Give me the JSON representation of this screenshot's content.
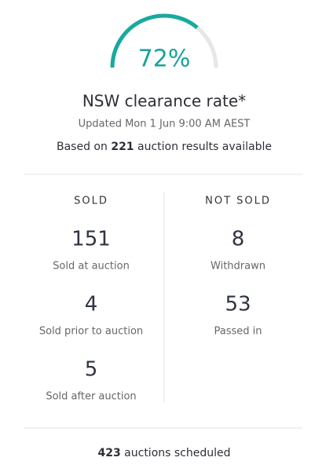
{
  "gauge": {
    "value": 72,
    "label": "72%",
    "max": 100
  },
  "title": "NSW clearance rate*",
  "updated": "Updated Mon 1 Jun 9:00 AM AEST",
  "based_on": {
    "prefix": "Based on",
    "count": 221,
    "suffix": "auction results available"
  },
  "sold": {
    "heading": "SOLD",
    "items": [
      {
        "value": 151,
        "label": "Sold at auction"
      },
      {
        "value": 4,
        "label": "Sold prior to auction"
      },
      {
        "value": 5,
        "label": "Sold after auction"
      }
    ]
  },
  "not_sold": {
    "heading": "NOT SOLD",
    "items": [
      {
        "value": 8,
        "label": "Withdrawn"
      },
      {
        "value": 53,
        "label": "Passed in"
      }
    ]
  },
  "scheduled": {
    "count": 423,
    "text": "auctions scheduled"
  }
}
